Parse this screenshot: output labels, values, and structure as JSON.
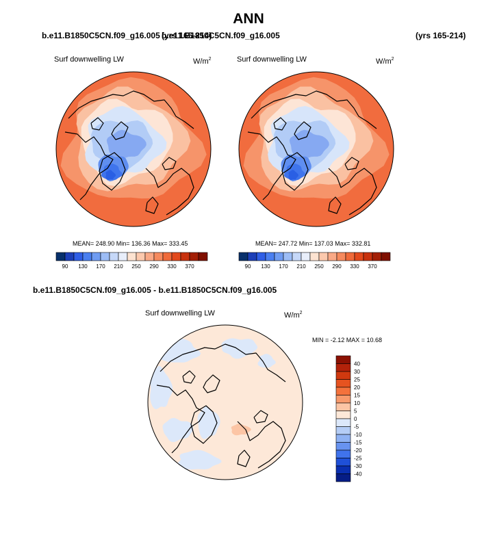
{
  "page": {
    "title": "ANN"
  },
  "header": {
    "case_left": "b.e11.B1850C5CN.f09_g16.005",
    "yrs_left": "(yrs 165-214)",
    "case_right": "b.e11.B1850C5CN.f09_g16.005",
    "yrs_right": "(yrs 165-214)",
    "diff_title": "b.e11.B1850C5CN.f09_g16.005 - b.e11.B1850C5CN.f09_g16.005"
  },
  "chart_data": [
    {
      "type": "heatmap",
      "projection": "north-polar-stereographic",
      "title": "Surf downwelling LW",
      "units": "W/m",
      "units_exp": "2",
      "stats": {
        "mean": "248.90",
        "min": "136.36",
        "max": "333.45",
        "text": "MEAN= 248.90  Min= 136.36  Max= 333.45"
      },
      "colorbar": {
        "orientation": "horizontal",
        "labels": [
          "90",
          "130",
          "170",
          "210",
          "250",
          "290",
          "330",
          "370"
        ],
        "colors": [
          "#08306b",
          "#1c3fb8",
          "#2f5ee6",
          "#4a7ff0",
          "#6f9cf2",
          "#9dbdf6",
          "#c6d8f8",
          "#e8eefa",
          "#fde3d1",
          "#fcc9ad",
          "#f9a986",
          "#f58a5e",
          "#ef6a3a",
          "#e2491c",
          "#c8320e",
          "#a31f06",
          "#7f0f00"
        ]
      },
      "zones": {
        "r20": "#f16c3e",
        "r35": "#f6946a",
        "r48": "#fac1a2",
        "r60": "#fde5d6",
        "r70": "#d7e5fa",
        "r80": "#b2ccf6",
        "lowA": "#86a9f2",
        "lowB": "#5f8ef0",
        "lowC": "#3f74ec",
        "lowD": "#2a5fe4"
      }
    },
    {
      "type": "heatmap",
      "projection": "north-polar-stereographic",
      "title": "Surf downwelling LW",
      "units": "W/m",
      "units_exp": "2",
      "stats": {
        "mean": "247.72",
        "min": "137.03",
        "max": "332.81",
        "text": "MEAN= 247.72  Min= 137.03  Max= 332.81"
      },
      "colorbar": {
        "orientation": "horizontal",
        "labels": [
          "90",
          "130",
          "170",
          "210",
          "250",
          "290",
          "330",
          "370"
        ],
        "colors": [
          "#08306b",
          "#1c3fb8",
          "#2f5ee6",
          "#4a7ff0",
          "#6f9cf2",
          "#9dbdf6",
          "#c6d8f8",
          "#e8eefa",
          "#fde3d1",
          "#fcc9ad",
          "#f9a986",
          "#f58a5e",
          "#ef6a3a",
          "#e2491c",
          "#c8320e",
          "#a31f06",
          "#7f0f00"
        ]
      },
      "zones": {
        "r20": "#f16c3e",
        "r35": "#f6946a",
        "r48": "#fac1a2",
        "r60": "#fde5d6",
        "r70": "#d7e5fa",
        "r80": "#b2ccf6",
        "lowA": "#86a9f2",
        "lowB": "#5f8ef0",
        "lowC": "#3f74ec",
        "lowD": "#2a5fe4"
      }
    },
    {
      "type": "heatmap",
      "projection": "north-polar-stereographic",
      "title": "Surf downwelling LW",
      "units": "W/m",
      "units_exp": "2",
      "stats": {
        "min": "-2.12",
        "max": "10.68",
        "text": "MIN =  -2.12 MAX =  10.68"
      },
      "colorbar": {
        "orientation": "vertical",
        "labels": [
          "40",
          "30",
          "25",
          "20",
          "15",
          "10",
          "5",
          "0",
          "-5",
          "-10",
          "-15",
          "-20",
          "-25",
          "-30",
          "-40"
        ],
        "colors": [
          "#8c1103",
          "#b3220a",
          "#d0390f",
          "#e65320",
          "#f4723c",
          "#f89a6c",
          "#fcc5a5",
          "#fde8d8",
          "#dce8fa",
          "#b5cdf6",
          "#8fb2f3",
          "#6893f0",
          "#4073ec",
          "#1f50d8",
          "#0a2fb0",
          "#061d86"
        ]
      },
      "zones": {
        "base": "#fde8d8",
        "neg": "#dce8fa",
        "pos": "#fcc5a5"
      }
    }
  ]
}
